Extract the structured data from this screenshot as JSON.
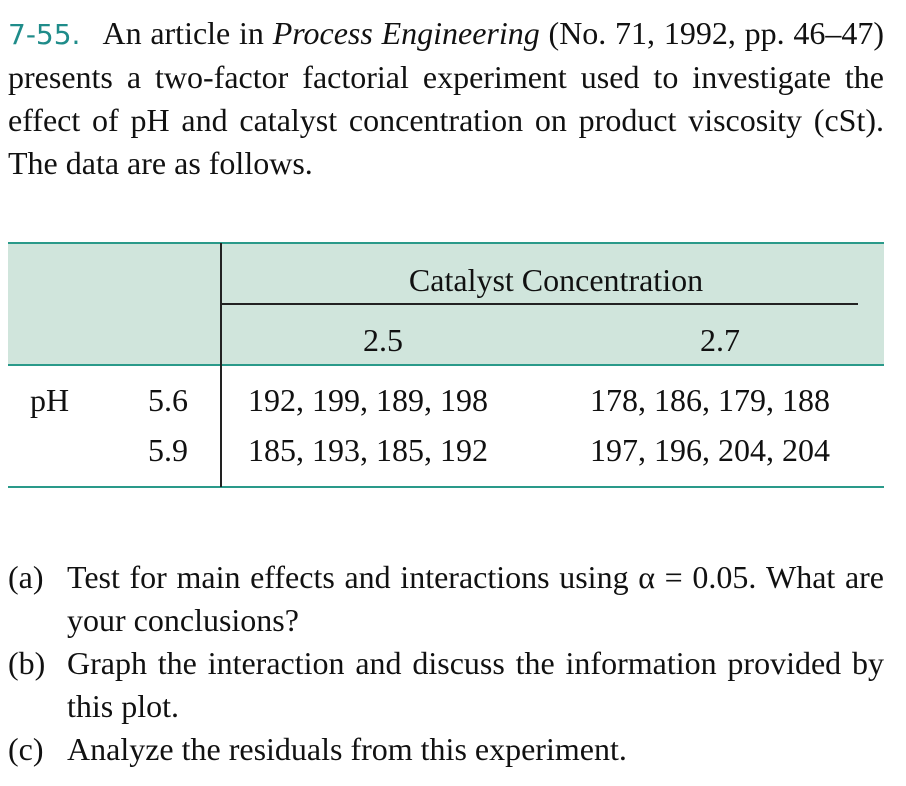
{
  "problem": {
    "number": "7-55.",
    "intro_before": "An article in",
    "intro_italic": "Process Engineering",
    "intro_after": "(No. 71, 1992, pp. 46–47) presents a two-factor factorial experiment used to investigate the effect of pH and catalyst concentration on product viscosity (cSt). The data are as follows."
  },
  "table": {
    "column_header": "Catalyst Concentration",
    "columns": [
      "2.5",
      "2.7"
    ],
    "row_header": "pH",
    "rows": [
      {
        "level": "5.6",
        "cells": [
          "192, 199, 189, 198",
          "178, 186, 179, 188"
        ]
      },
      {
        "level": "5.9",
        "cells": [
          "185, 193, 185, 192",
          "197, 196, 204, 204"
        ]
      }
    ]
  },
  "parts": [
    {
      "label": "(a)",
      "text": "Test for main effects and interactions using α = 0.05. What are your conclusions?"
    },
    {
      "label": "(b)",
      "text": "Graph the interaction and discuss the information provided by this plot."
    },
    {
      "label": "(c)",
      "text": "Analyze the residuals from this experiment."
    }
  ]
}
